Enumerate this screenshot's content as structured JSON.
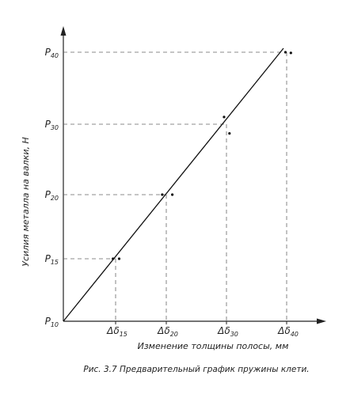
{
  "chart_data": {
    "type": "line",
    "ylabel": "Усилия металла на валки, Н",
    "xlabel": "Изменение толщины полосы, мм",
    "caption": "Рис. 3.7 Предварительный график пружины клети.",
    "origin_label": {
      "main": "P",
      "sub": "10"
    },
    "x_ticks": [
      {
        "main": "Δδ",
        "sub": "15",
        "x": 1
      },
      {
        "main": "Δδ",
        "sub": "20",
        "x": 2
      },
      {
        "main": "Δδ",
        "sub": "30",
        "x": 3
      },
      {
        "main": "Δδ",
        "sub": "40",
        "x": 4
      }
    ],
    "y_ticks": [
      {
        "main": "P",
        "sub": "15",
        "y": 1
      },
      {
        "main": "P",
        "sub": "20",
        "y": 2
      },
      {
        "main": "P",
        "sub": "30",
        "y": 3
      },
      {
        "main": "P",
        "sub": "40",
        "y": 4
      }
    ],
    "line": {
      "x": [
        0,
        4
      ],
      "y": [
        0,
        4
      ]
    },
    "points": [
      {
        "x": 0.95,
        "y": 1.0
      },
      {
        "x": 1.07,
        "y": 1.0
      },
      {
        "x": 1.92,
        "y": 2.0
      },
      {
        "x": 2.1,
        "y": 2.0
      },
      {
        "x": 2.96,
        "y": 3.1
      },
      {
        "x": 3.05,
        "y": 2.87
      },
      {
        "x": 3.98,
        "y": 4.0
      },
      {
        "x": 4.07,
        "y": 3.99
      }
    ],
    "grid": false
  }
}
